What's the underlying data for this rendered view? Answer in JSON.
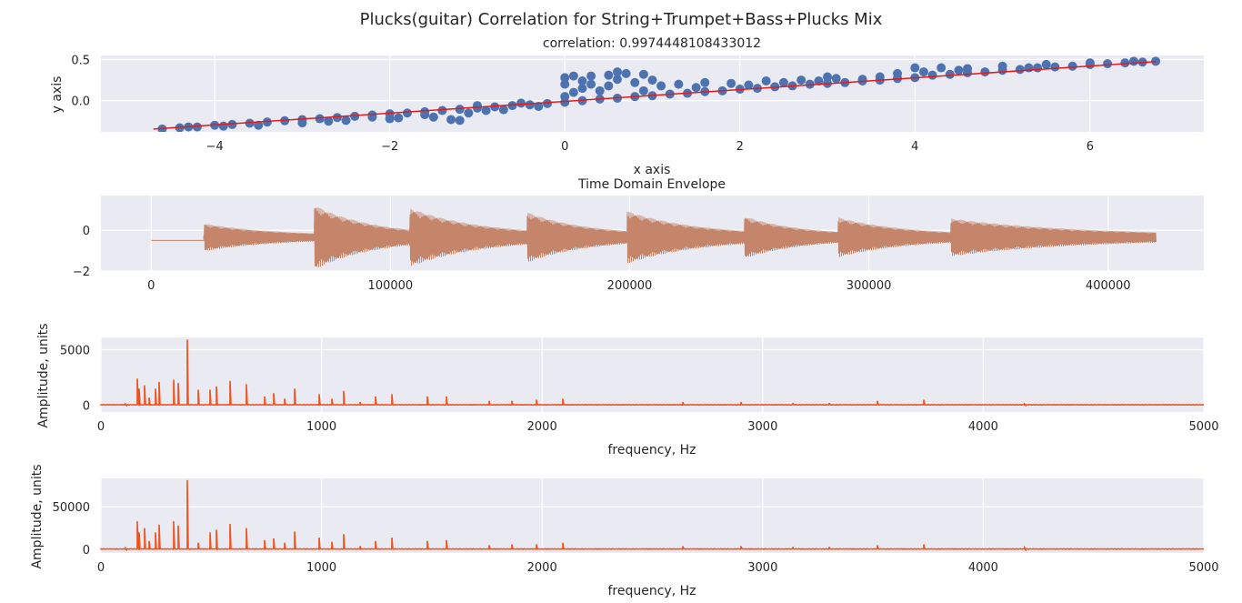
{
  "figure": {
    "suptitle": "Plucks(guitar) Correlation for String+Trumpet+Bass+Plucks Mix"
  },
  "chart_data": [
    {
      "type": "scatter",
      "title": "correlation: 0.9974448108433012",
      "xlabel": "x axis",
      "ylabel": "y axis",
      "xlim": [
        -5.3,
        7.3
      ],
      "ylim": [
        -0.38,
        0.55
      ],
      "xticks": [
        -4,
        -2,
        0,
        2,
        4,
        6
      ],
      "xtick_labels": [
        "−4",
        "−2",
        "0",
        "2",
        "4",
        "6"
      ],
      "yticks": [
        0.0,
        0.5
      ],
      "ytick_labels": [
        "0.0",
        "0.5"
      ],
      "grid": true,
      "point_color": "#4c72b0",
      "fit_color": "#e41a1c",
      "fit_line": {
        "x": [
          -4.7,
          6.75
        ],
        "y": [
          -0.345,
          0.475
        ]
      },
      "points": [
        [
          -4.6,
          -0.345
        ],
        [
          -4.4,
          -0.33
        ],
        [
          -4.2,
          -0.32
        ],
        [
          -4.0,
          -0.3
        ],
        [
          -3.8,
          -0.29
        ],
        [
          -3.6,
          -0.275
        ],
        [
          -3.4,
          -0.26
        ],
        [
          -3.2,
          -0.245
        ],
        [
          -3.0,
          -0.23
        ],
        [
          -2.8,
          -0.22
        ],
        [
          -2.6,
          -0.205
        ],
        [
          -2.4,
          -0.19
        ],
        [
          -2.2,
          -0.175
        ],
        [
          -2.0,
          -0.16
        ],
        [
          -1.8,
          -0.15
        ],
        [
          -1.6,
          -0.135
        ],
        [
          -1.4,
          -0.12
        ],
        [
          -1.2,
          -0.105
        ],
        [
          -1.0,
          -0.09
        ],
        [
          -0.8,
          -0.075
        ],
        [
          -0.6,
          -0.06
        ],
        [
          -0.4,
          -0.05
        ],
        [
          -0.2,
          -0.035
        ],
        [
          0.0,
          -0.02
        ],
        [
          -3.0,
          -0.27
        ],
        [
          -2.5,
          -0.24
        ],
        [
          -2.0,
          -0.22
        ],
        [
          -1.5,
          -0.2
        ],
        [
          -1.3,
          -0.23
        ],
        [
          -1.9,
          -0.21
        ],
        [
          -2.7,
          -0.25
        ],
        [
          -3.5,
          -0.3
        ],
        [
          -4.3,
          -0.32
        ],
        [
          -1.6,
          -0.17
        ],
        [
          -1.1,
          -0.15
        ],
        [
          -0.7,
          -0.11
        ],
        [
          -0.3,
          -0.07
        ],
        [
          -1.2,
          -0.24
        ],
        [
          -2.2,
          -0.2
        ],
        [
          -3.9,
          -0.31
        ],
        [
          0.0,
          0.28
        ],
        [
          0.1,
          0.3
        ],
        [
          0.3,
          0.3
        ],
        [
          0.5,
          0.31
        ],
        [
          0.7,
          0.33
        ],
        [
          0.9,
          0.32
        ],
        [
          0.6,
          0.35
        ],
        [
          0.3,
          0.2
        ],
        [
          0.5,
          0.18
        ],
        [
          0.8,
          0.22
        ],
        [
          1.0,
          0.25
        ],
        [
          0.2,
          0.15
        ],
        [
          0.4,
          0.12
        ],
        [
          0.1,
          0.1
        ],
        [
          0.2,
          0.24
        ],
        [
          0.6,
          0.26
        ],
        [
          0.0,
          0.05
        ],
        [
          0.0,
          0.2
        ],
        [
          0.2,
          0.0
        ],
        [
          0.4,
          0.02
        ],
        [
          0.6,
          0.03
        ],
        [
          0.8,
          0.05
        ],
        [
          1.0,
          0.06
        ],
        [
          1.2,
          0.08
        ],
        [
          1.4,
          0.09
        ],
        [
          1.6,
          0.11
        ],
        [
          1.8,
          0.12
        ],
        [
          1.3,
          0.2
        ],
        [
          1.6,
          0.22
        ],
        [
          1.9,
          0.21
        ],
        [
          2.0,
          0.14
        ],
        [
          2.2,
          0.15
        ],
        [
          2.4,
          0.17
        ],
        [
          2.6,
          0.18
        ],
        [
          2.8,
          0.2
        ],
        [
          3.0,
          0.21
        ],
        [
          2.3,
          0.24
        ],
        [
          2.7,
          0.25
        ],
        [
          3.1,
          0.27
        ],
        [
          3.4,
          0.26
        ],
        [
          3.2,
          0.22
        ],
        [
          3.4,
          0.24
        ],
        [
          3.6,
          0.25
        ],
        [
          3.8,
          0.27
        ],
        [
          4.0,
          0.28
        ],
        [
          3.8,
          0.33
        ],
        [
          4.1,
          0.35
        ],
        [
          4.3,
          0.4
        ],
        [
          4.0,
          0.4
        ],
        [
          4.6,
          0.39
        ],
        [
          4.2,
          0.31
        ],
        [
          4.4,
          0.32
        ],
        [
          4.6,
          0.34
        ],
        [
          4.8,
          0.35
        ],
        [
          5.0,
          0.37
        ],
        [
          5.2,
          0.38
        ],
        [
          5.4,
          0.4
        ],
        [
          5.6,
          0.41
        ],
        [
          5.8,
          0.42
        ],
        [
          6.0,
          0.44
        ],
        [
          6.2,
          0.45
        ],
        [
          6.4,
          0.46
        ],
        [
          6.6,
          0.47
        ],
        [
          6.75,
          0.48
        ],
        [
          5.0,
          0.42
        ],
        [
          5.5,
          0.44
        ],
        [
          6.0,
          0.46
        ],
        [
          6.5,
          0.48
        ],
        [
          3.0,
          0.29
        ],
        [
          2.5,
          0.22
        ],
        [
          1.5,
          0.16
        ],
        [
          0.9,
          0.12
        ],
        [
          -0.5,
          -0.03
        ],
        [
          -1.0,
          -0.06
        ],
        [
          -0.9,
          -0.12
        ],
        [
          1.1,
          0.18
        ],
        [
          2.1,
          0.19
        ],
        [
          2.9,
          0.24
        ],
        [
          3.6,
          0.29
        ],
        [
          4.5,
          0.37
        ],
        [
          5.3,
          0.4
        ]
      ]
    },
    {
      "type": "line",
      "title": "Time Domain Envelope",
      "xlabel": "",
      "ylabel": "",
      "xlim": [
        -21000,
        440000
      ],
      "ylim": [
        -2.0,
        1.7
      ],
      "xticks": [
        0,
        100000,
        200000,
        300000,
        400000
      ],
      "xtick_labels": [
        "0",
        "100000",
        "200000",
        "300000",
        "400000"
      ],
      "yticks": [
        -2,
        0
      ],
      "ytick_labels": [
        "−2",
        "0"
      ],
      "grid": true,
      "color": "#c4856a",
      "baseline": -0.5,
      "silent_until": 22000,
      "end": 420000,
      "onsets": [
        {
          "x": 22000,
          "amp": 0.6
        },
        {
          "x": 68000,
          "amp": 1.5
        },
        {
          "x": 108000,
          "amp": 1.35
        },
        {
          "x": 157000,
          "amp": 1.15
        },
        {
          "x": 199000,
          "amp": 1.2
        },
        {
          "x": 248000,
          "amp": 0.95
        },
        {
          "x": 287000,
          "amp": 0.9
        },
        {
          "x": 334000,
          "amp": 0.85
        }
      ]
    },
    {
      "type": "line",
      "title": "",
      "xlabel": "frequency, Hz",
      "ylabel": "Amplitude, units",
      "xlim": [
        0,
        5000
      ],
      "ylim": [
        -600,
        6100
      ],
      "xticks": [
        0,
        1000,
        2000,
        3000,
        4000,
        5000
      ],
      "xtick_labels": [
        "0",
        "1000",
        "2000",
        "3000",
        "4000",
        "5000"
      ],
      "yticks": [
        0,
        5000
      ],
      "ytick_labels": [
        "0",
        "5000"
      ],
      "grid": true,
      "color": "#f2501a",
      "peaks": [
        {
          "f": 110,
          "a": 100
        },
        {
          "f": 165,
          "a": 2400
        },
        {
          "f": 175,
          "a": 1500
        },
        {
          "f": 196,
          "a": 1800
        },
        {
          "f": 220,
          "a": 700
        },
        {
          "f": 247,
          "a": 1500
        },
        {
          "f": 262,
          "a": 2100
        },
        {
          "f": 330,
          "a": 2300
        },
        {
          "f": 349,
          "a": 2000
        },
        {
          "f": 392,
          "a": 5900
        },
        {
          "f": 440,
          "a": 1400
        },
        {
          "f": 494,
          "a": 1400
        },
        {
          "f": 523,
          "a": 1700
        },
        {
          "f": 587,
          "a": 2200
        },
        {
          "f": 659,
          "a": 1900
        },
        {
          "f": 740,
          "a": 800
        },
        {
          "f": 784,
          "a": 1100
        },
        {
          "f": 831,
          "a": 600
        },
        {
          "f": 880,
          "a": 1500
        },
        {
          "f": 988,
          "a": 1000
        },
        {
          "f": 1047,
          "a": 600
        },
        {
          "f": 1100,
          "a": 1300
        },
        {
          "f": 1175,
          "a": 300
        },
        {
          "f": 1245,
          "a": 800
        },
        {
          "f": 1319,
          "a": 1000
        },
        {
          "f": 1480,
          "a": 800
        },
        {
          "f": 1568,
          "a": 800
        },
        {
          "f": 1760,
          "a": 400
        },
        {
          "f": 1865,
          "a": 400
        },
        {
          "f": 1976,
          "a": 500
        },
        {
          "f": 2093,
          "a": 600
        },
        {
          "f": 2637,
          "a": 300
        },
        {
          "f": 2900,
          "a": 300
        },
        {
          "f": 3136,
          "a": 200
        },
        {
          "f": 3300,
          "a": 200
        },
        {
          "f": 3520,
          "a": 400
        },
        {
          "f": 3729,
          "a": 500
        },
        {
          "f": 4186,
          "a": 100
        }
      ]
    },
    {
      "type": "line",
      "title": "",
      "xlabel": "frequency, Hz",
      "ylabel": "Amplitude, units",
      "xlim": [
        0,
        5000
      ],
      "ylim": [
        -4000,
        83000
      ],
      "xticks": [
        0,
        1000,
        2000,
        3000,
        4000,
        5000
      ],
      "xtick_labels": [
        "0",
        "1000",
        "2000",
        "3000",
        "4000",
        "5000"
      ],
      "yticks": [
        0,
        50000
      ],
      "ytick_labels": [
        "0",
        "50000"
      ],
      "grid": true,
      "color": "#f2501a",
      "peaks": [
        {
          "f": 110,
          "a": 1500
        },
        {
          "f": 165,
          "a": 33000
        },
        {
          "f": 175,
          "a": 20000
        },
        {
          "f": 196,
          "a": 25000
        },
        {
          "f": 220,
          "a": 10000
        },
        {
          "f": 247,
          "a": 20000
        },
        {
          "f": 262,
          "a": 29000
        },
        {
          "f": 330,
          "a": 33000
        },
        {
          "f": 349,
          "a": 28000
        },
        {
          "f": 392,
          "a": 81000
        },
        {
          "f": 440,
          "a": 8000
        },
        {
          "f": 494,
          "a": 20000
        },
        {
          "f": 523,
          "a": 23000
        },
        {
          "f": 587,
          "a": 30000
        },
        {
          "f": 659,
          "a": 25000
        },
        {
          "f": 740,
          "a": 11000
        },
        {
          "f": 784,
          "a": 13000
        },
        {
          "f": 831,
          "a": 8000
        },
        {
          "f": 880,
          "a": 21000
        },
        {
          "f": 988,
          "a": 14000
        },
        {
          "f": 1047,
          "a": 9000
        },
        {
          "f": 1100,
          "a": 18000
        },
        {
          "f": 1175,
          "a": 4000
        },
        {
          "f": 1245,
          "a": 10000
        },
        {
          "f": 1319,
          "a": 14000
        },
        {
          "f": 1480,
          "a": 10000
        },
        {
          "f": 1568,
          "a": 11000
        },
        {
          "f": 1760,
          "a": 5000
        },
        {
          "f": 1865,
          "a": 6000
        },
        {
          "f": 1976,
          "a": 6000
        },
        {
          "f": 2093,
          "a": 8000
        },
        {
          "f": 2637,
          "a": 4000
        },
        {
          "f": 2900,
          "a": 4000
        },
        {
          "f": 3136,
          "a": 3000
        },
        {
          "f": 3300,
          "a": 3000
        },
        {
          "f": 3520,
          "a": 5000
        },
        {
          "f": 3729,
          "a": 6000
        },
        {
          "f": 4186,
          "a": 2000
        }
      ]
    }
  ]
}
